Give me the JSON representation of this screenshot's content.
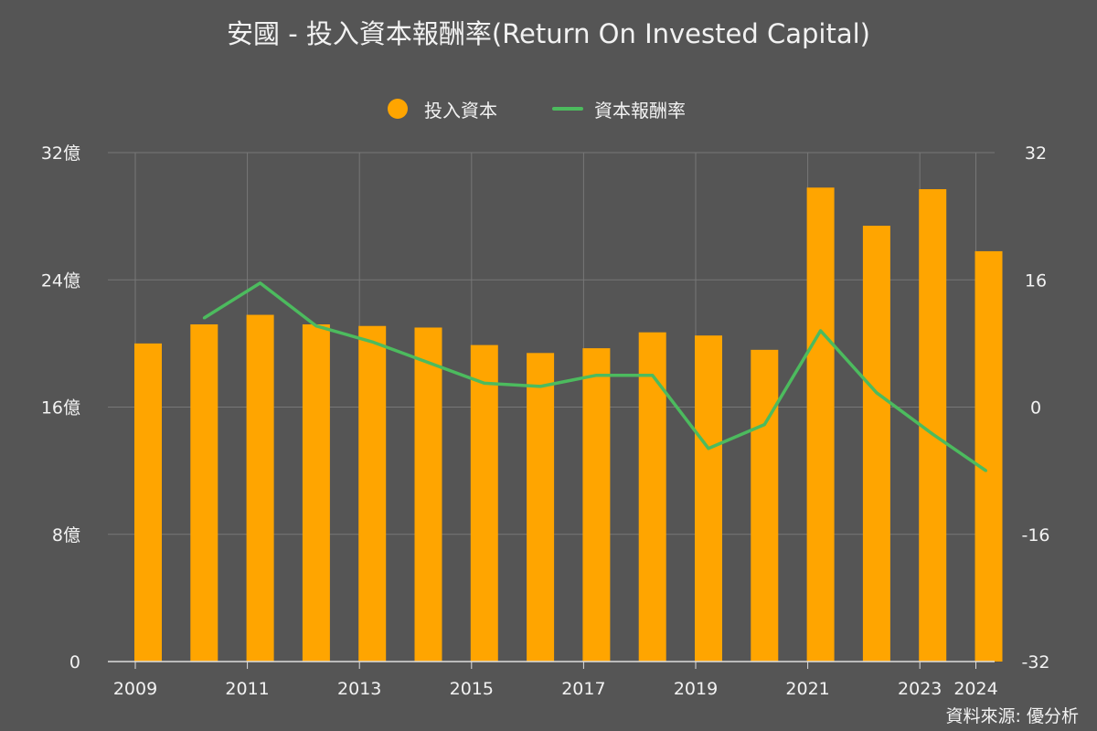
{
  "title": "安國 - 投入資本報酬率(Return On Invested Capital)",
  "source": "資料來源: 優分析",
  "colors": {
    "background": "#555555",
    "bar": "#FFA500",
    "line": "#4CBB5E",
    "grid": "#777777",
    "text": "#F2F2F2"
  },
  "legend": [
    {
      "label": "投入資本",
      "marker": "circle"
    },
    {
      "label": "資本報酬率",
      "marker": "line"
    }
  ],
  "chart_data": {
    "type": "bar",
    "categories": [
      "2009",
      "2010",
      "2011",
      "2012",
      "2013",
      "2014",
      "2015",
      "2016",
      "2017",
      "2018",
      "2019",
      "2020",
      "2021",
      "2022",
      "2023",
      "2024"
    ],
    "x_tick_labels": [
      "2009",
      "2011",
      "2013",
      "2015",
      "2017",
      "2019",
      "2021",
      "2023",
      "2024"
    ],
    "series": [
      {
        "name": "投入資本",
        "type": "bar",
        "axis": "left",
        "values": [
          20.0,
          21.2,
          21.8,
          21.2,
          21.1,
          21.0,
          19.9,
          19.4,
          19.7,
          20.7,
          20.5,
          19.6,
          29.8,
          27.4,
          29.7,
          25.8
        ]
      },
      {
        "name": "資本報酬率",
        "type": "line",
        "axis": "right",
        "values": [
          null,
          11.2,
          15.6,
          10.2,
          8.2,
          5.6,
          3.0,
          2.6,
          4.0,
          4.0,
          -5.2,
          -2.2,
          9.6,
          1.8,
          -3.4,
          -8.0
        ]
      }
    ],
    "y_left": {
      "ticks": [
        0,
        8,
        16,
        24,
        32
      ],
      "tick_labels": [
        "0",
        "8億",
        "16億",
        "24億",
        "32億"
      ],
      "range": [
        0,
        32
      ]
    },
    "y_right": {
      "ticks": [
        -32,
        -16,
        0,
        16,
        32
      ],
      "tick_labels": [
        "-32",
        "-16",
        "0",
        "16",
        "32"
      ],
      "range": [
        -32,
        32
      ]
    },
    "grid": true,
    "legend_position": "top-center"
  }
}
